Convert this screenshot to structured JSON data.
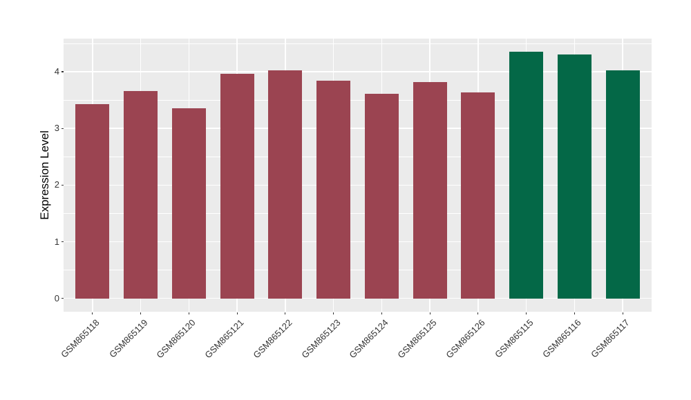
{
  "chart_data": {
    "type": "bar",
    "title": "",
    "xlabel": "",
    "ylabel": "Expression Level",
    "categories": [
      "GSM865118",
      "GSM865119",
      "GSM865120",
      "GSM865121",
      "GSM865122",
      "GSM865123",
      "GSM865124",
      "GSM865125",
      "GSM865126",
      "GSM865115",
      "GSM865116",
      "GSM865117"
    ],
    "values": [
      3.43,
      3.66,
      3.36,
      3.97,
      4.02,
      3.84,
      3.61,
      3.82,
      3.64,
      4.35,
      4.31,
      4.03
    ],
    "bar_colors": [
      "#9B4451",
      "#9B4451",
      "#9B4451",
      "#9B4451",
      "#9B4451",
      "#9B4451",
      "#9B4451",
      "#9B4451",
      "#9B4451",
      "#046847",
      "#046847",
      "#046847"
    ],
    "group_colors": {
      "left_group": "#9B4451",
      "right_group": "#046847"
    },
    "yticks": [
      0,
      1,
      2,
      3,
      4
    ],
    "ytick_labels": [
      "0",
      "1",
      "2",
      "3",
      "4"
    ],
    "minor_gridlines": [
      0.5,
      1.5,
      2.5,
      3.5,
      4.5
    ],
    "ylim": [
      -0.235,
      4.585
    ],
    "x_tick_rotation_deg": 45,
    "legend": "none",
    "grid": "on",
    "panel_background": "#EBEBEB",
    "gridline_color": "#FFFFFF",
    "axis_text_color": "#333333",
    "bar_width_fraction": 0.7
  }
}
